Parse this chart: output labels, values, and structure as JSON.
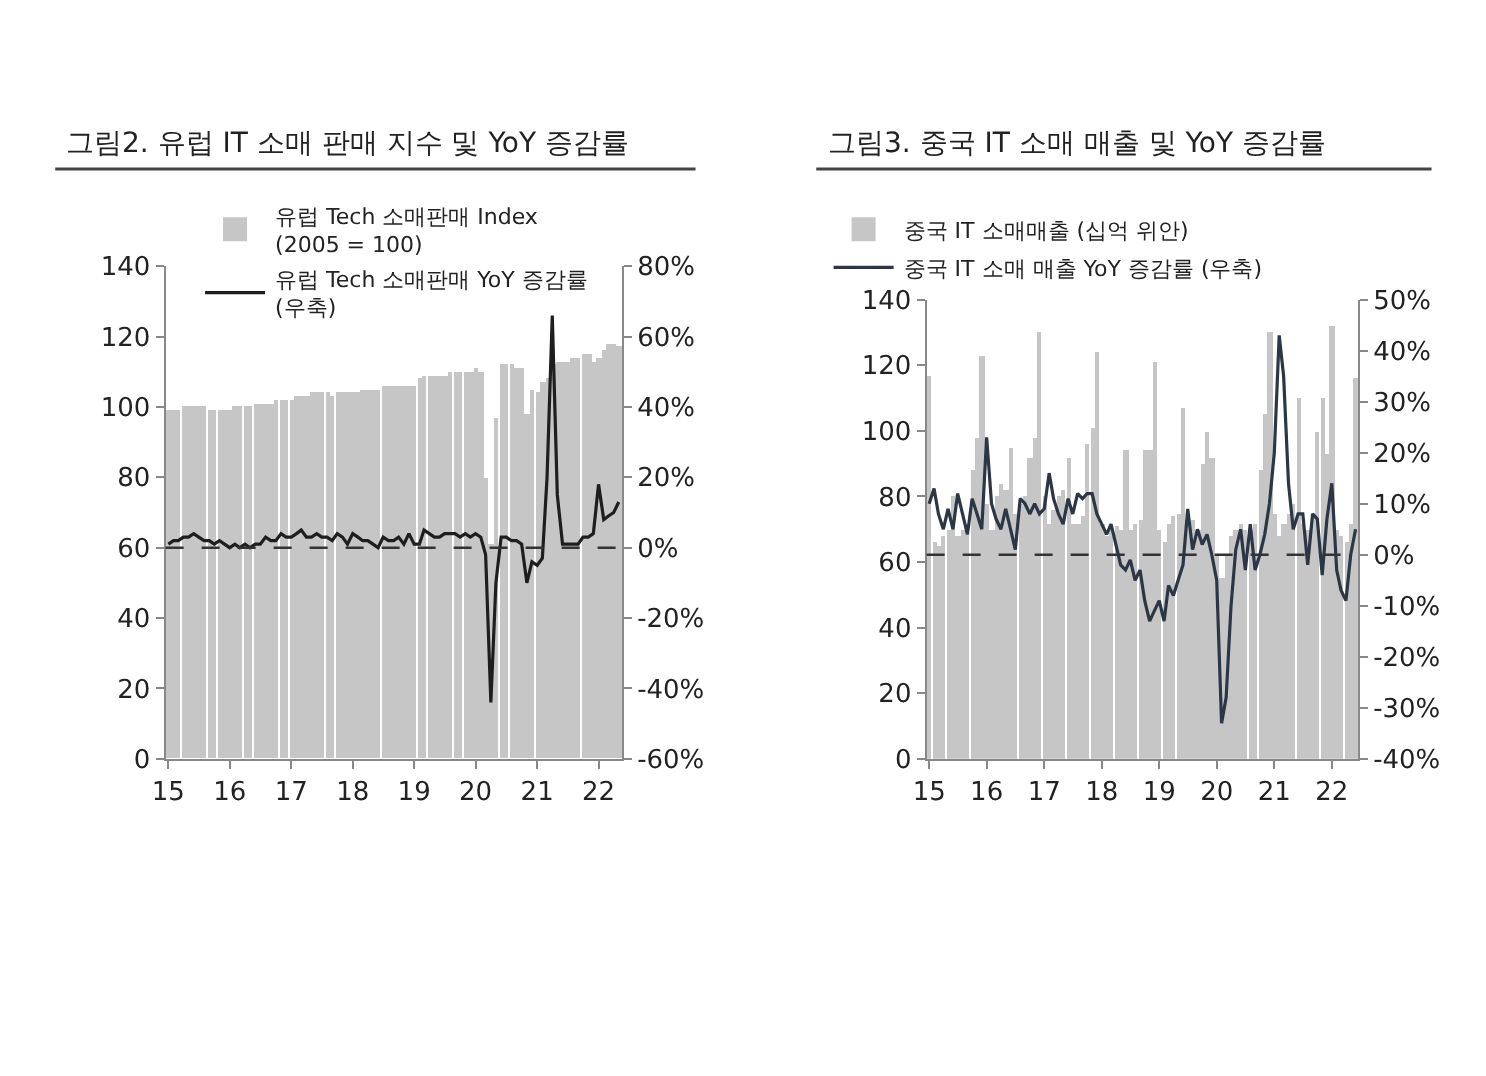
{
  "chart_data": [
    {
      "type": "bar",
      "title": "그림2. 유럽 IT 소매 판매 지수 및 YoY 증감률",
      "x": [
        "2015-01",
        "2015-02",
        "2015-03",
        "2015-04",
        "2015-05",
        "2015-06",
        "2015-07",
        "2015-08",
        "2015-09",
        "2015-10",
        "2015-11",
        "2015-12",
        "2016-01",
        "2016-02",
        "2016-03",
        "2016-04",
        "2016-05",
        "2016-06",
        "2016-07",
        "2016-08",
        "2016-09",
        "2016-10",
        "2016-11",
        "2016-12",
        "2017-01",
        "2017-02",
        "2017-03",
        "2017-04",
        "2017-05",
        "2017-06",
        "2017-07",
        "2017-08",
        "2017-09",
        "2017-10",
        "2017-11",
        "2017-12",
        "2018-01",
        "2018-02",
        "2018-03",
        "2018-04",
        "2018-05",
        "2018-06",
        "2018-07",
        "2018-08",
        "2018-09",
        "2018-10",
        "2018-11",
        "2018-12",
        "2019-01",
        "2019-02",
        "2019-03",
        "2019-04",
        "2019-05",
        "2019-06",
        "2019-07",
        "2019-08",
        "2019-09",
        "2019-10",
        "2019-11",
        "2019-12",
        "2020-01",
        "2020-02",
        "2020-03",
        "2020-04",
        "2020-05",
        "2020-06",
        "2020-07",
        "2020-08",
        "2020-09",
        "2020-10",
        "2020-11",
        "2020-12",
        "2021-01",
        "2021-02",
        "2021-03",
        "2021-04",
        "2021-05",
        "2021-06",
        "2021-07",
        "2021-08",
        "2021-09",
        "2021-10",
        "2021-11",
        "2021-12",
        "2022-01",
        "2022-02",
        "2022-03",
        "2022-04",
        "2022-05"
      ],
      "series": [
        {
          "name": "유럽 Tech 소매판매 Index (2005 = 100)",
          "color": "#c6c6c6",
          "values": [
            99,
            99,
            99,
            100,
            100,
            100,
            100,
            100,
            99,
            99,
            99,
            99,
            99,
            100,
            100,
            100,
            100,
            101,
            101,
            101,
            101,
            102,
            102,
            102,
            102,
            103,
            103,
            103,
            104,
            104,
            104,
            104,
            103,
            104,
            104,
            104,
            104,
            104,
            105,
            105,
            105,
            105,
            106,
            106,
            106,
            106,
            106,
            106,
            106,
            108,
            109,
            109,
            109,
            109,
            109,
            110,
            110,
            110,
            110,
            110,
            111,
            110,
            80,
            61,
            97,
            112,
            112,
            112,
            111,
            111,
            98,
            105,
            104,
            107,
            108,
            112,
            113,
            113,
            113,
            114,
            114,
            115,
            115,
            113,
            114,
            116,
            118,
            118,
            117
          ]
        },
        {
          "name": "유럽 Tech 소매판매 YoY 증감률 (우축)",
          "type": "line",
          "axis": "y2",
          "color": "#1e1e1e",
          "values": [
            1,
            2,
            2,
            3,
            3,
            4,
            3,
            2,
            2,
            1,
            2,
            1,
            0,
            1,
            0,
            1,
            0,
            1,
            1,
            3,
            2,
            2,
            4,
            3,
            3,
            4,
            5,
            3,
            3,
            4,
            3,
            3,
            2,
            4,
            3,
            1,
            4,
            3,
            2,
            2,
            1,
            0,
            3,
            2,
            2,
            3,
            1,
            4,
            1,
            1,
            5,
            4,
            3,
            3,
            4,
            4,
            4,
            3,
            4,
            3,
            4,
            3,
            -2,
            -44,
            -10,
            3,
            3,
            2,
            2,
            1,
            -10,
            -4,
            -5,
            -3,
            20,
            66,
            15,
            1,
            1,
            1,
            1,
            3,
            3,
            4,
            18,
            8,
            9,
            10,
            13
          ]
        }
      ],
      "xlim": [
        "2014-12-16",
        "2022-05-20"
      ],
      "xticks": [
        {
          "value": "2015-01-01",
          "label": "15"
        },
        {
          "value": "2016-01-01",
          "label": "16"
        },
        {
          "value": "2017-01-01",
          "label": "17"
        },
        {
          "value": "2018-01-01",
          "label": "18"
        },
        {
          "value": "2019-01-01",
          "label": "19"
        },
        {
          "value": "2020-01-01",
          "label": "20"
        },
        {
          "value": "2021-01-01",
          "label": "21"
        },
        {
          "value": "2022-01-01",
          "label": "22"
        }
      ],
      "ylim": [
        0,
        140
      ],
      "yticks": [
        0,
        20,
        40,
        60,
        80,
        100,
        120,
        140
      ],
      "y2lim": [
        -60,
        80
      ],
      "y2ticks": [
        {
          "value": -60,
          "label": "-60%"
        },
        {
          "value": -40,
          "label": "-40%"
        },
        {
          "value": -20,
          "label": "-20%"
        },
        {
          "value": 0,
          "label": "0%"
        },
        {
          "value": 20,
          "label": "20%"
        },
        {
          "value": 40,
          "label": "40%"
        },
        {
          "value": 60,
          "label": "60%"
        },
        {
          "value": 80,
          "label": "80%"
        }
      ],
      "ref_lines": [
        {
          "axis": "y2",
          "value": 0,
          "color": "#333333",
          "line_style": "dashed"
        }
      ],
      "legend": "top"
    },
    {
      "type": "bar",
      "title": "그림3. 중국 IT 소매 매출 및 YoY 증감률",
      "x": [
        "2015-01",
        "2015-02",
        "2015-03",
        "2015-04",
        "2015-05",
        "2015-06",
        "2015-07",
        "2015-08",
        "2015-09",
        "2015-10",
        "2015-11",
        "2015-12",
        "2016-01",
        "2016-02",
        "2016-03",
        "2016-04",
        "2016-05",
        "2016-06",
        "2016-07",
        "2016-08",
        "2016-09",
        "2016-10",
        "2016-11",
        "2016-12",
        "2017-01",
        "2017-02",
        "2017-03",
        "2017-04",
        "2017-05",
        "2017-06",
        "2017-07",
        "2017-08",
        "2017-09",
        "2017-10",
        "2017-11",
        "2017-12",
        "2018-01",
        "2018-02",
        "2018-03",
        "2018-04",
        "2018-05",
        "2018-06",
        "2018-07",
        "2018-08",
        "2018-09",
        "2018-10",
        "2018-11",
        "2018-12",
        "2019-01",
        "2019-02",
        "2019-03",
        "2019-04",
        "2019-05",
        "2019-06",
        "2019-07",
        "2019-08",
        "2019-09",
        "2019-10",
        "2019-11",
        "2019-12",
        "2020-01",
        "2020-02",
        "2020-03",
        "2020-04",
        "2020-05",
        "2020-06",
        "2020-07",
        "2020-08",
        "2020-09",
        "2020-10",
        "2020-11",
        "2020-12",
        "2021-01",
        "2021-02",
        "2021-03",
        "2021-04",
        "2021-05",
        "2021-06",
        "2021-07",
        "2021-08",
        "2021-09",
        "2021-10",
        "2021-11",
        "2021-12",
        "2022-01",
        "2022-02",
        "2022-03",
        "2022-04",
        "2022-05",
        "2022-06"
      ],
      "series": [
        {
          "name": "중국 IT 소매매출 (십억 위안)",
          "color": "#c6c6c6",
          "values": [
            117,
            66,
            65,
            68,
            70,
            80,
            68,
            70,
            72,
            88,
            98,
            123,
            78,
            70,
            80,
            84,
            82,
            95,
            75,
            78,
            80,
            92,
            98,
            130,
            80,
            72,
            76,
            80,
            82,
            92,
            72,
            72,
            74,
            96,
            101,
            124,
            72,
            68,
            70,
            71,
            70,
            94,
            70,
            72,
            73,
            94,
            94,
            121,
            70,
            66,
            72,
            74,
            75,
            107,
            72,
            73,
            70,
            90,
            100,
            92,
            62,
            55,
            62,
            68,
            70,
            72,
            70,
            70,
            72,
            88,
            105,
            130,
            75,
            68,
            72,
            75,
            78,
            110,
            72,
            70,
            74,
            100,
            110,
            93,
            132,
            70,
            68,
            66,
            72,
            116
          ]
        },
        {
          "name": "중국 IT 소매 매출 YoY 증감률 (우축)",
          "type": "line",
          "axis": "y2",
          "color": "#2b3746",
          "values": [
            10,
            13,
            8,
            5,
            9,
            5,
            12,
            8,
            4,
            11,
            8,
            5,
            23,
            10,
            7,
            5,
            9,
            5,
            1,
            11,
            10,
            8,
            10,
            8,
            9,
            16,
            11,
            8,
            6,
            11,
            8,
            12,
            11,
            12,
            12,
            8,
            6,
            4,
            6,
            2,
            -2,
            -3,
            -1,
            -5,
            -3,
            -9,
            -13,
            -11,
            -9,
            -13,
            -6,
            -8,
            -5,
            -2,
            9,
            1,
            5,
            2,
            4,
            0,
            -5,
            -33,
            -28,
            -10,
            1,
            5,
            -3,
            6,
            -3,
            0,
            4,
            10,
            20,
            43,
            35,
            14,
            5,
            8,
            8,
            -2,
            8,
            7,
            -4,
            7,
            14,
            -3,
            -7,
            -9,
            0,
            5
          ]
        }
      ],
      "xlim": [
        "2014-12-16",
        "2022-06-16"
      ],
      "xticks": [
        {
          "value": "2015-01-01",
          "label": "15"
        },
        {
          "value": "2016-01-01",
          "label": "16"
        },
        {
          "value": "2017-01-01",
          "label": "17"
        },
        {
          "value": "2018-01-01",
          "label": "18"
        },
        {
          "value": "2019-01-01",
          "label": "19"
        },
        {
          "value": "2020-01-01",
          "label": "20"
        },
        {
          "value": "2021-01-01",
          "label": "21"
        },
        {
          "value": "2022-01-01",
          "label": "22"
        }
      ],
      "ylim": [
        0,
        140
      ],
      "yticks": [
        0,
        20,
        40,
        60,
        80,
        100,
        120,
        140
      ],
      "y2lim": [
        -40,
        50
      ],
      "y2ticks": [
        {
          "value": -40,
          "label": "-40%"
        },
        {
          "value": -30,
          "label": "-30%"
        },
        {
          "value": -20,
          "label": "-20%"
        },
        {
          "value": -10,
          "label": "-10%"
        },
        {
          "value": 0,
          "label": "0%"
        },
        {
          "value": 10,
          "label": "10%"
        },
        {
          "value": 20,
          "label": "20%"
        },
        {
          "value": 30,
          "label": "30%"
        },
        {
          "value": 40,
          "label": "40%"
        },
        {
          "value": 50,
          "label": "50%"
        }
      ],
      "ref_lines": [
        {
          "axis": "y2",
          "value": 0,
          "color": "#333333",
          "line_style": "dashed"
        }
      ],
      "legend": "top"
    }
  ]
}
